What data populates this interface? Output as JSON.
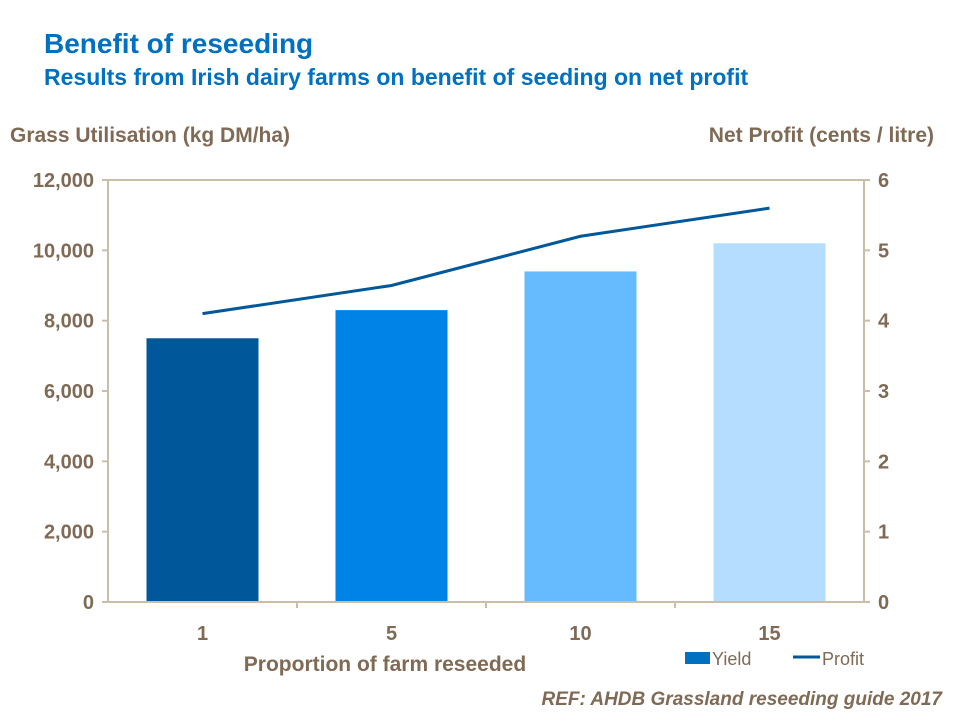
{
  "title": "Benefit of reseeding",
  "subtitle": "Results from Irish dairy farms on benefit of seeding on net profit",
  "reference": "REF: AHDB Grassland reseeding guide 2017",
  "chart_data": {
    "type": "bar",
    "categories": [
      "1",
      "5",
      "10",
      "15"
    ],
    "xlabel": "Proportion of farm reseeded",
    "ylabel": "Grass Utilisation (kg DM/ha)",
    "y2label": "Net Profit (cents / litre)",
    "ylim": [
      0,
      12000
    ],
    "y2lim": [
      0,
      6
    ],
    "yticks": [
      "0",
      "2,000",
      "4,000",
      "6,000",
      "8,000",
      "10,000",
      "12,000"
    ],
    "y2ticks": [
      "0",
      "1",
      "2",
      "3",
      "4",
      "5",
      "6"
    ],
    "grid": false,
    "legend_position": "bottom-right",
    "series": [
      {
        "name": "Yield",
        "type": "bar",
        "axis": "left",
        "values": [
          7500,
          8300,
          9400,
          10200
        ],
        "bar_colors": [
          "#00579A",
          "#0083E6",
          "#66BBFF",
          "#B5DDFF"
        ],
        "legend_color": "#0070C0"
      },
      {
        "name": "Profit",
        "type": "line",
        "axis": "right",
        "values": [
          4.1,
          4.5,
          5.2,
          5.6
        ],
        "color": "#00579A"
      }
    ],
    "axis_color": "#C9BFA8",
    "text_color": "#7F6A55"
  }
}
